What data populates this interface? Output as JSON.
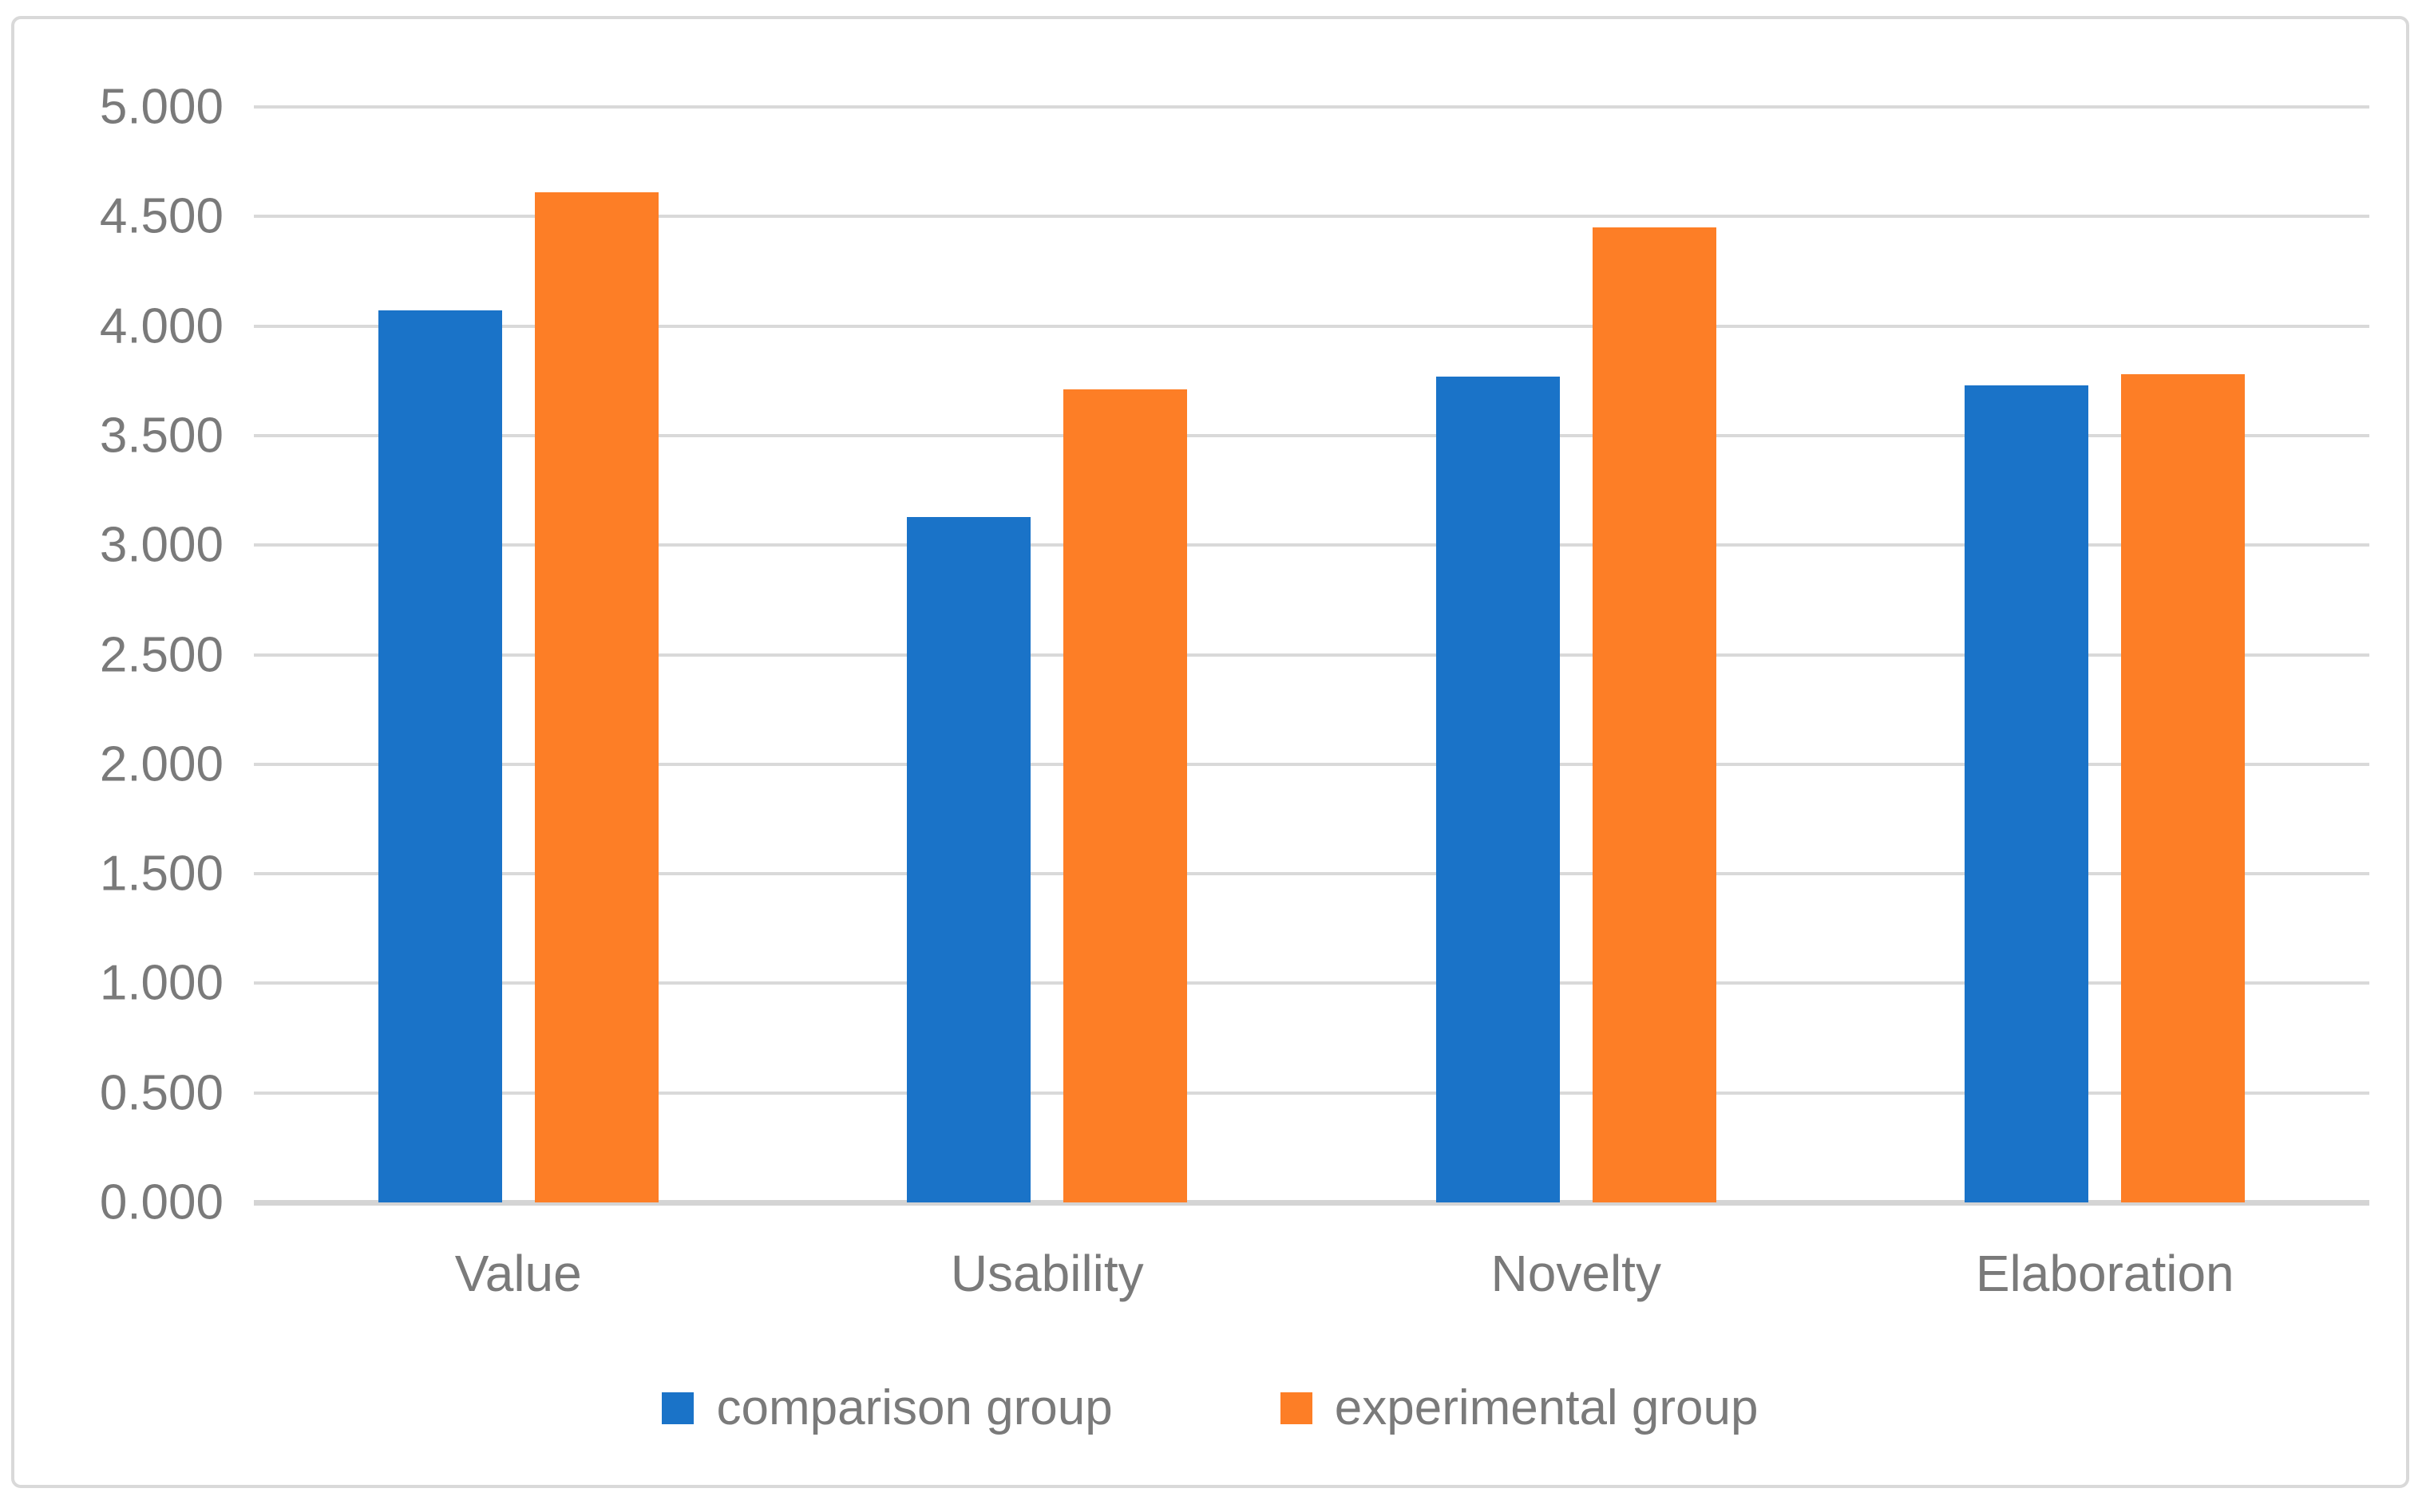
{
  "chart_data": {
    "type": "bar",
    "title": "",
    "xlabel": "",
    "ylabel": "",
    "categories": [
      "Value",
      "Usability",
      "Novelty",
      "Elaboration"
    ],
    "series": [
      {
        "name": "comparison group",
        "color": "#1A73C8",
        "values": [
          4.07,
          3.13,
          3.77,
          3.73
        ]
      },
      {
        "name": "experimental group",
        "color": "#FD7E26",
        "values": [
          4.61,
          3.71,
          4.45,
          3.78
        ]
      }
    ],
    "ylim": [
      0,
      5
    ],
    "ytick_step": 0.5,
    "ytick_labels": [
      "0.000",
      "0.500",
      "1.000",
      "1.500",
      "2.000",
      "2.500",
      "3.000",
      "3.500",
      "4.000",
      "4.500",
      "5.000"
    ],
    "ytick_decimals": 3,
    "grid": true,
    "legend_position": "bottom"
  },
  "style": {
    "gridline_color": "#D9D9D9",
    "axis_line_color": "#D4D4D4",
    "frame_border_color": "#D9D9D9",
    "text_color": "#7A7A7A",
    "background": "#FFFFFF"
  }
}
